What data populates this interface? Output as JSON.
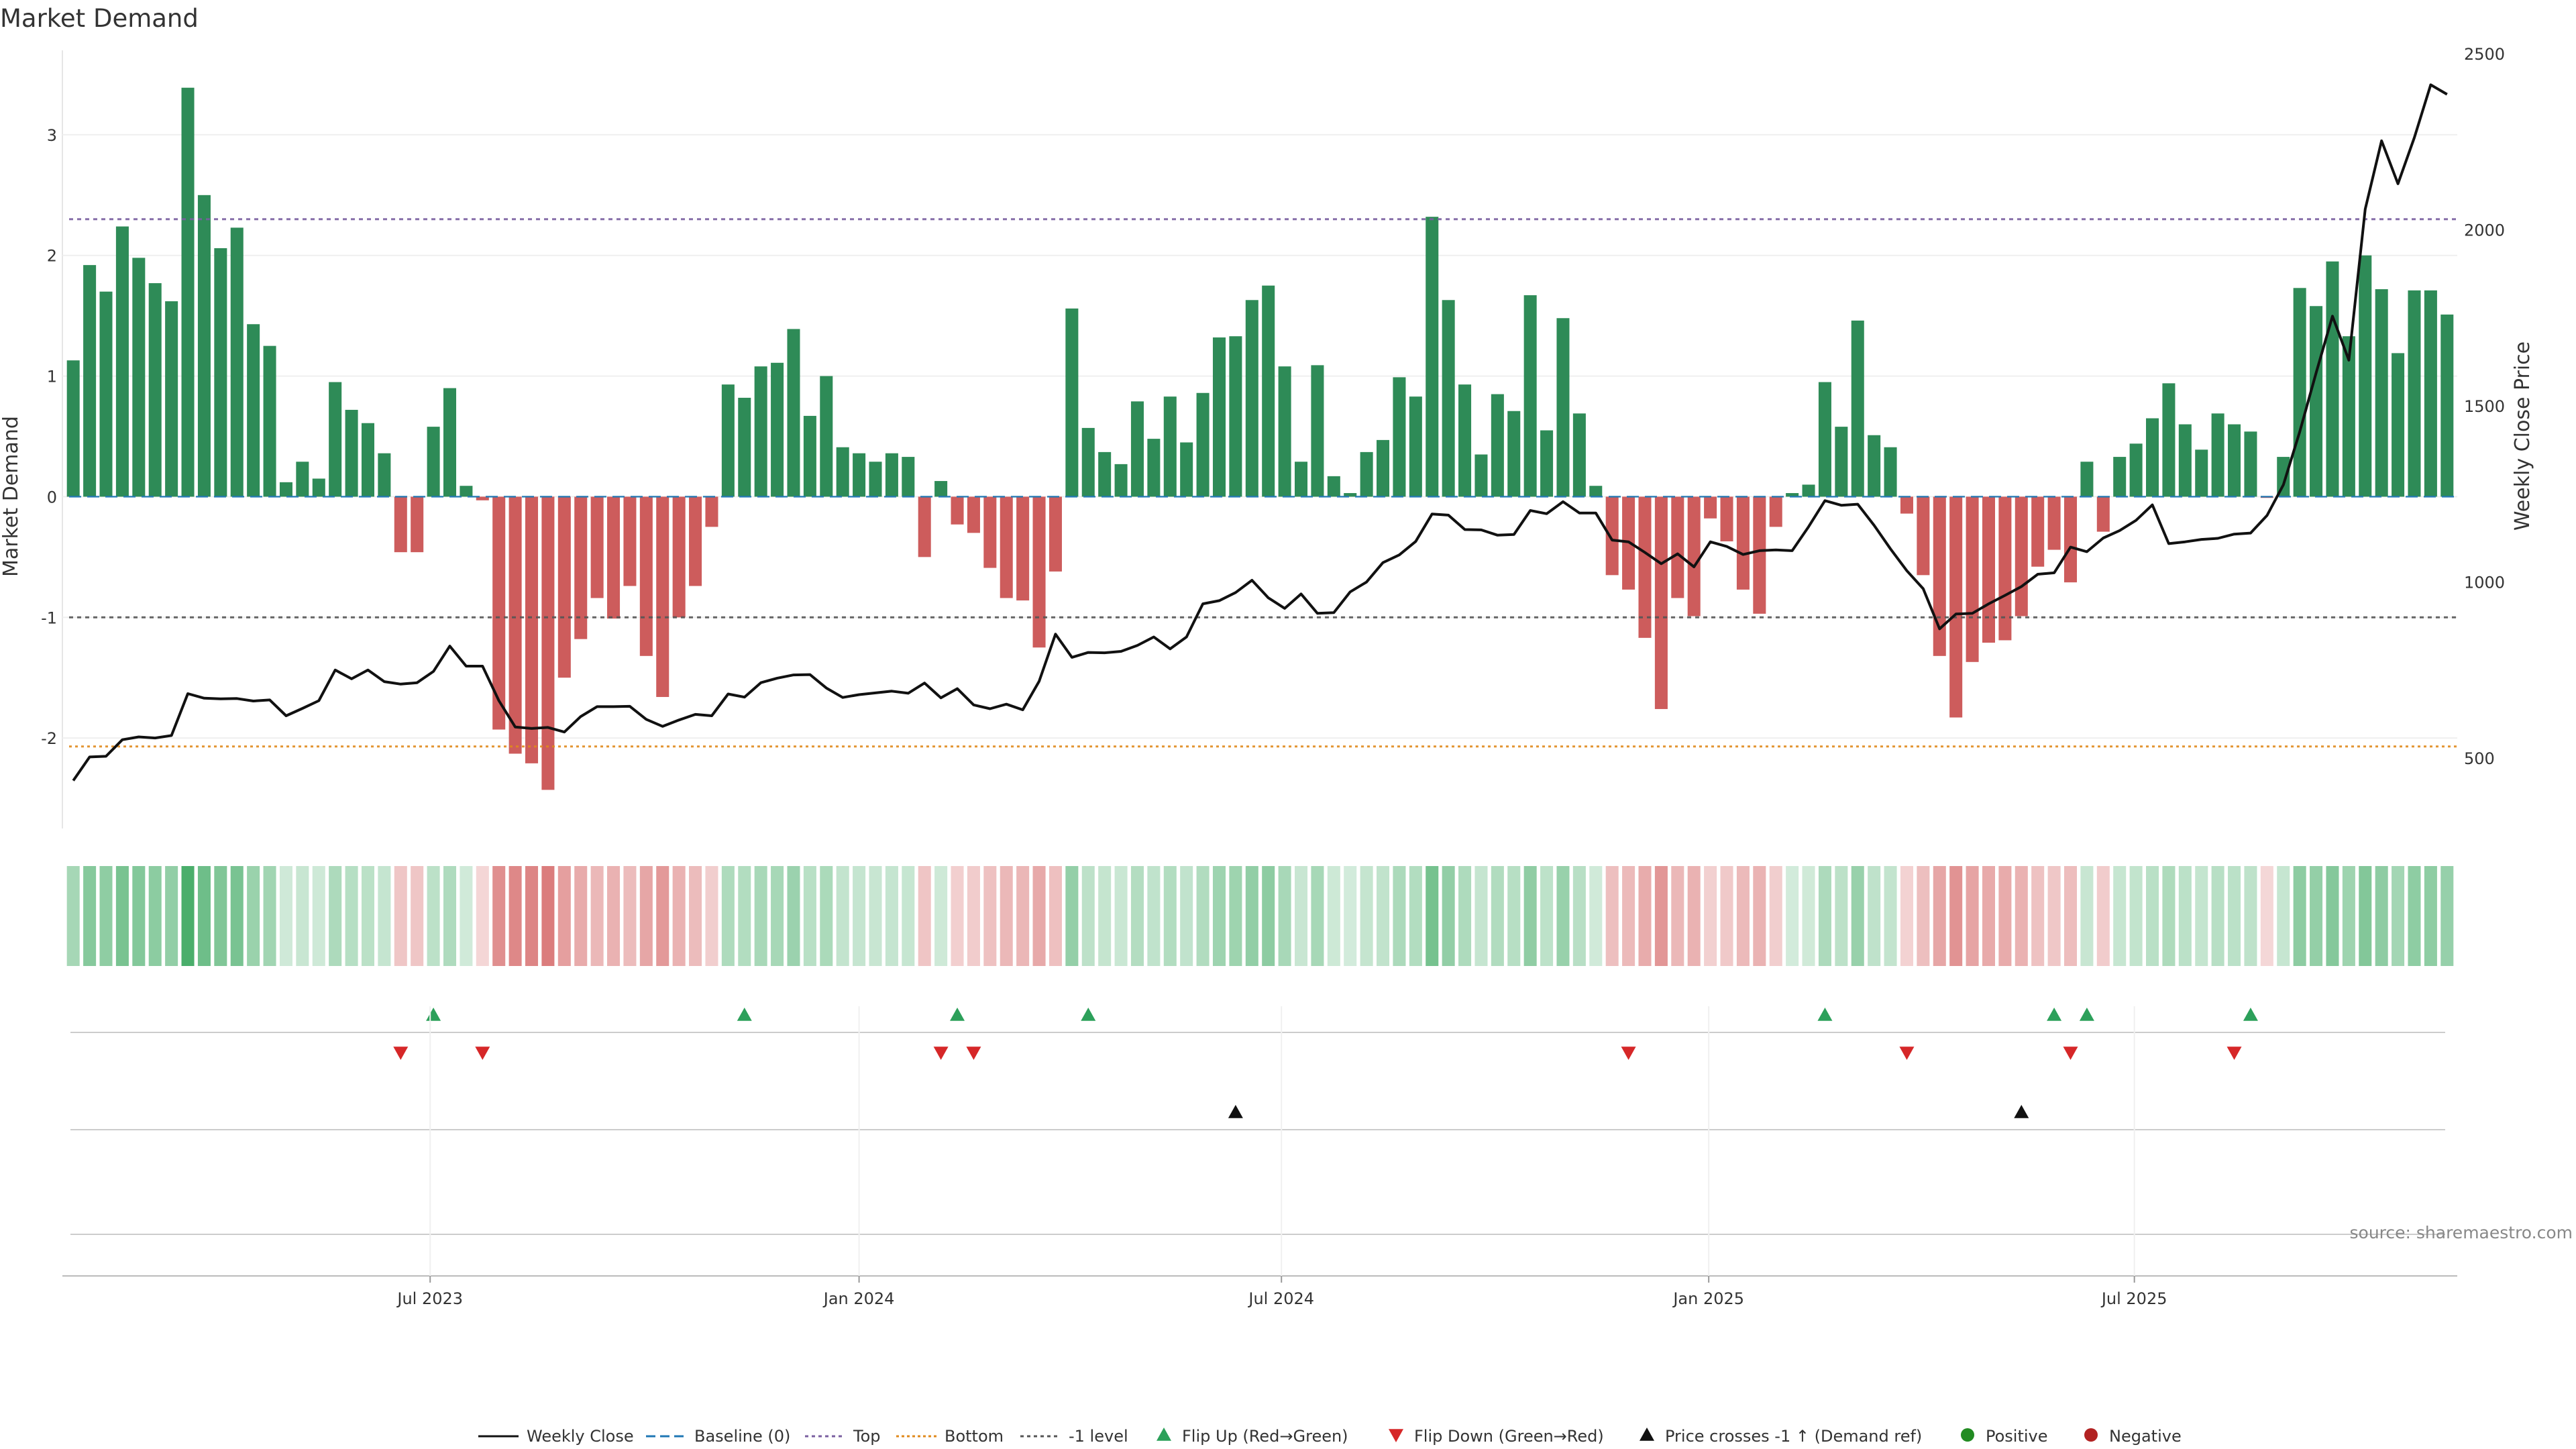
{
  "chart_data": {
    "type": "bar",
    "title": "Market Demand",
    "ylabel": "Market Demand",
    "y2label": "Weekly Close Price",
    "ylim": [
      -2.75,
      3.7
    ],
    "y_ticks": [
      -2,
      -1,
      0,
      1,
      2,
      3
    ],
    "y2lim": [
      300,
      2510
    ],
    "y2_ticks": [
      500,
      1000,
      1500,
      2000,
      2500
    ],
    "x_tick_labels": [
      "Jul 2023",
      "Jan 2024",
      "Jul 2024",
      "Jan 2025",
      "Jul 2025"
    ],
    "x_tick_index": [
      21.8,
      48.0,
      73.8,
      99.9,
      125.9
    ],
    "reference_lines": {
      "baseline": {
        "name": "Baseline (0)",
        "value": 0,
        "color": "#1f77b4"
      },
      "top": {
        "name": "Top",
        "value": 2.3,
        "color": "#7a5fa0"
      },
      "bottom": {
        "name": "Bottom",
        "value": -2.07,
        "color": "#e08a1c"
      },
      "minus_one": {
        "name": "-1 level",
        "value": -1,
        "color": "#555555"
      }
    },
    "series": [
      {
        "name": "Market Demand",
        "values": [
          1.13,
          1.92,
          1.7,
          2.24,
          1.98,
          1.77,
          1.62,
          3.39,
          2.5,
          2.06,
          2.23,
          1.43,
          1.25,
          0.12,
          0.29,
          0.15,
          0.95,
          0.72,
          0.61,
          0.36,
          -0.46,
          -0.46,
          0.58,
          0.9,
          0.09,
          -0.03,
          -1.93,
          -2.13,
          -2.21,
          -2.43,
          -1.5,
          -1.18,
          -0.84,
          -1.01,
          -0.74,
          -1.32,
          -1.66,
          -1.0,
          -0.74,
          -0.25,
          0.93,
          0.82,
          1.08,
          1.11,
          1.39,
          0.67,
          1.0,
          0.41,
          0.36,
          0.29,
          0.36,
          0.33,
          -0.5,
          0.13,
          -0.23,
          -0.3,
          -0.59,
          -0.84,
          -0.86,
          -1.25,
          -0.62,
          1.56,
          0.57,
          0.37,
          0.27,
          0.79,
          0.48,
          0.83,
          0.45,
          0.86,
          1.32,
          1.33,
          1.63,
          1.75,
          1.08,
          0.29,
          1.09,
          0.17,
          0.03,
          0.37,
          0.47,
          0.99,
          0.83,
          2.32,
          1.63,
          0.93,
          0.35,
          0.85,
          0.71,
          1.67,
          0.55,
          1.48,
          0.69,
          0.09,
          -0.65,
          -0.77,
          -1.17,
          -1.76,
          -0.84,
          -0.99,
          -0.18,
          -0.37,
          -0.77,
          -0.97,
          -0.25,
          0.03,
          0.1,
          0.95,
          0.58,
          1.46,
          0.51,
          0.41,
          -0.14,
          -0.65,
          -1.32,
          -1.83,
          -1.37,
          -1.21,
          -1.19,
          -0.99,
          -0.58,
          -0.44,
          -0.71,
          0.29,
          -0.29,
          0.33,
          0.44,
          0.65,
          0.94,
          0.6,
          0.39,
          0.69,
          0.6,
          0.54,
          -0.01,
          0.33,
          1.73,
          1.58,
          1.95,
          1.33,
          2.0,
          1.72,
          1.19,
          1.71,
          1.71,
          1.51
        ]
      },
      {
        "name": "Weekly Close",
        "axis": "right",
        "values": [
          436,
          503,
          505,
          552,
          560,
          557,
          564,
          683,
          670,
          668,
          669,
          662,
          665,
          620,
          641,
          663,
          750,
          725,
          750,
          717,
          710,
          714,
          746,
          818,
          761,
          761,
          663,
          588,
          584,
          587,
          574,
          618,
          646,
          646,
          647,
          610,
          590,
          608,
          624,
          620,
          682,
          673,
          714,
          727,
          736,
          737,
          699,
          672,
          680,
          685,
          690,
          684,
          713,
          671,
          697,
          651,
          640,
          653,
          637,
          718,
          852,
          786,
          800,
          799,
          803,
          820,
          844,
          810,
          844,
          938,
          947,
          970,
          1005,
          955,
          925,
          966,
          911,
          913,
          972,
          1000,
          1055,
          1077,
          1115,
          1193,
          1190,
          1149,
          1148,
          1133,
          1135,
          1203,
          1194,
          1228,
          1196,
          1196,
          1119,
          1114,
          1084,
          1052,
          1080,
          1043,
          1114,
          1101,
          1078,
          1089,
          1091,
          1089,
          1157,
          1231,
          1218,
          1221,
          1161,
          1094,
          1032,
          981,
          867,
          909,
          911,
          938,
          962,
          987,
          1022,
          1026,
          1099,
          1086,
          1125,
          1146,
          1175,
          1219,
          1109,
          1114,
          1121,
          1124,
          1136,
          1139,
          1189,
          1276,
          1427,
          1594,
          1755,
          1630,
          2059,
          2253,
          2131,
          2262,
          2412,
          2385
        ]
      }
    ],
    "flip_up_index": [
      22,
      41,
      54,
      62,
      107,
      121,
      123,
      133
    ],
    "flip_down_index": [
      20,
      25,
      53,
      55,
      95,
      112,
      122,
      132
    ],
    "price_cross_index": [
      71,
      119
    ],
    "legend": [
      "Weekly Close",
      "Baseline (0)",
      "Top",
      "Bottom",
      "-1 level",
      "Flip Up (Red→Green)",
      "Flip Down (Green→Red)",
      "Price crosses -1 ↑ (Demand ref)",
      "Positive",
      "Negative"
    ],
    "legend_position": "bottom-center",
    "colors": {
      "positive_bar": "#2e8b57",
      "negative_bar": "#cd5c5c",
      "price_line": "#111111",
      "flip_up": "#2ca05a",
      "flip_down": "#d62728",
      "cross_up": "#111111",
      "positive_dot": "#228b22",
      "negative_dot": "#b22222"
    }
  },
  "source": "source: sharemaestro.com"
}
